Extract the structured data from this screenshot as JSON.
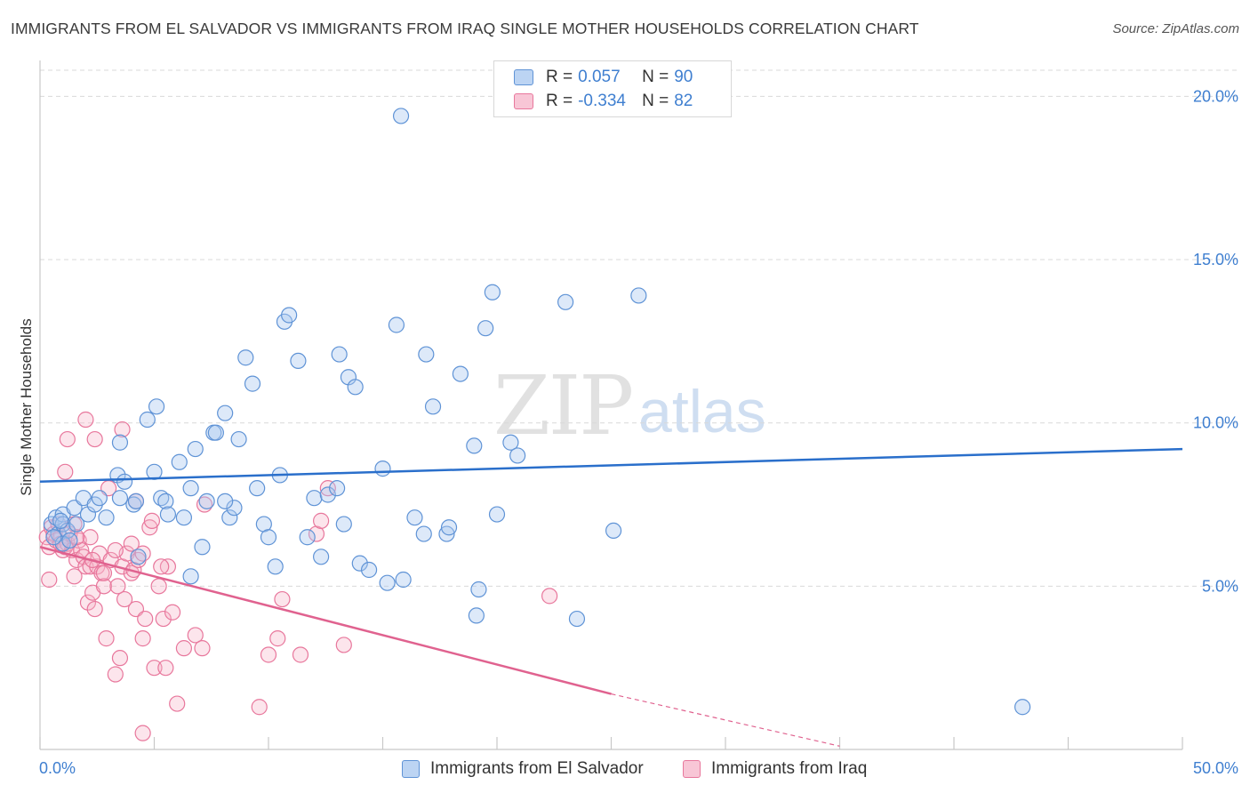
{
  "title": "IMMIGRANTS FROM EL SALVADOR VS IMMIGRANTS FROM IRAQ SINGLE MOTHER HOUSEHOLDS CORRELATION CHART",
  "source": "Source: ZipAtlas.com",
  "watermark": {
    "zip": "ZIP",
    "atlas": "atlas"
  },
  "legend_top": {
    "rows": [
      {
        "r_label": "R =",
        "r_value": "0.057",
        "n_label": "N =",
        "n_value": "90"
      },
      {
        "r_label": "R =",
        "r_value": "-0.334",
        "n_label": "N =",
        "n_value": "82"
      }
    ]
  },
  "colors": {
    "blue_fill": "#a9c8ef",
    "blue_stroke": "#5f93d6",
    "blue_line": "#2a6fcb",
    "pink_fill": "#f5b5c9",
    "pink_stroke": "#e8779c",
    "pink_line": "#e0628f",
    "grid": "#d9d9d9",
    "tick_text": "#3f7fd0"
  },
  "chart_data": {
    "type": "scatter",
    "title": "IMMIGRANTS FROM EL SALVADOR VS IMMIGRANTS FROM IRAQ SINGLE MOTHER HOUSEHOLDS CORRELATION CHART",
    "xlabel": "",
    "ylabel": "Single Mother Households",
    "xlim": [
      0,
      50
    ],
    "ylim": [
      0,
      20.8
    ],
    "x_tick_labels": [
      "0.0%",
      "50.0%"
    ],
    "y_ticks": [
      5,
      10,
      15,
      20
    ],
    "y_tick_labels": [
      "5.0%",
      "10.0%",
      "15.0%",
      "20.0%"
    ],
    "legend": [
      "Immigrants from El Salvador",
      "Immigrants from Iraq"
    ],
    "series": [
      {
        "name": "Immigrants from El Salvador",
        "r": 0.057,
        "n": 90,
        "trend": {
          "x0": 0,
          "y0": 8.2,
          "x1": 50,
          "y1": 9.2
        },
        "points": [
          [
            0.5,
            6.9
          ],
          [
            0.7,
            7.1
          ],
          [
            0.8,
            6.6
          ],
          [
            1.0,
            7.2
          ],
          [
            1.0,
            6.9
          ],
          [
            1.2,
            6.7
          ],
          [
            1.0,
            6.3
          ],
          [
            0.6,
            6.5
          ],
          [
            1.5,
            7.4
          ],
          [
            1.6,
            6.9
          ],
          [
            1.9,
            7.7
          ],
          [
            2.1,
            7.2
          ],
          [
            2.4,
            7.5
          ],
          [
            2.9,
            7.1
          ],
          [
            2.6,
            7.7
          ],
          [
            3.5,
            7.7
          ],
          [
            3.5,
            9.4
          ],
          [
            3.4,
            8.4
          ],
          [
            3.7,
            8.2
          ],
          [
            4.1,
            7.5
          ],
          [
            4.2,
            7.6
          ],
          [
            4.3,
            5.9
          ],
          [
            4.7,
            10.1
          ],
          [
            5.0,
            8.5
          ],
          [
            5.1,
            10.5
          ],
          [
            5.3,
            7.7
          ],
          [
            5.5,
            7.6
          ],
          [
            5.6,
            7.2
          ],
          [
            6.1,
            8.8
          ],
          [
            6.3,
            7.1
          ],
          [
            6.6,
            5.3
          ],
          [
            6.6,
            8.0
          ],
          [
            6.8,
            9.2
          ],
          [
            7.1,
            6.2
          ],
          [
            7.3,
            7.6
          ],
          [
            7.6,
            9.7
          ],
          [
            7.7,
            9.7
          ],
          [
            8.1,
            10.3
          ],
          [
            8.3,
            7.1
          ],
          [
            8.5,
            7.4
          ],
          [
            8.7,
            9.5
          ],
          [
            8.1,
            7.6
          ],
          [
            9.0,
            12.0
          ],
          [
            9.3,
            11.2
          ],
          [
            9.5,
            8.0
          ],
          [
            9.8,
            6.9
          ],
          [
            10.0,
            6.5
          ],
          [
            10.3,
            5.6
          ],
          [
            10.5,
            8.4
          ],
          [
            10.7,
            13.1
          ],
          [
            10.9,
            13.3
          ],
          [
            11.3,
            11.9
          ],
          [
            11.7,
            6.5
          ],
          [
            12.0,
            7.7
          ],
          [
            12.3,
            5.9
          ],
          [
            12.6,
            7.8
          ],
          [
            13.0,
            8.0
          ],
          [
            13.1,
            12.1
          ],
          [
            13.3,
            6.9
          ],
          [
            13.5,
            11.4
          ],
          [
            13.8,
            11.1
          ],
          [
            14.0,
            5.7
          ],
          [
            14.4,
            5.5
          ],
          [
            15.0,
            8.6
          ],
          [
            15.2,
            5.1
          ],
          [
            15.6,
            13.0
          ],
          [
            15.9,
            5.2
          ],
          [
            15.8,
            19.4
          ],
          [
            16.4,
            7.1
          ],
          [
            16.8,
            6.6
          ],
          [
            16.9,
            12.1
          ],
          [
            17.2,
            10.5
          ],
          [
            17.8,
            6.6
          ],
          [
            17.9,
            6.8
          ],
          [
            18.4,
            11.5
          ],
          [
            19.0,
            9.3
          ],
          [
            19.1,
            4.1
          ],
          [
            19.2,
            4.9
          ],
          [
            19.5,
            12.9
          ],
          [
            19.8,
            14.0
          ],
          [
            20.0,
            7.2
          ],
          [
            20.6,
            9.4
          ],
          [
            20.9,
            9.0
          ],
          [
            23.0,
            13.7
          ],
          [
            23.5,
            4.0
          ],
          [
            25.1,
            6.7
          ],
          [
            26.2,
            13.9
          ],
          [
            43.0,
            1.3
          ],
          [
            0.9,
            7.0
          ],
          [
            1.3,
            6.4
          ]
        ]
      },
      {
        "name": "Immigrants from Iraq",
        "r": -0.334,
        "n": 82,
        "trend": {
          "x0": 0,
          "y0": 6.2,
          "x1": 25,
          "y1": 1.7,
          "dash_x1": 35,
          "dash_y1": 0.1
        },
        "points": [
          [
            0.3,
            6.5
          ],
          [
            0.4,
            6.2
          ],
          [
            0.5,
            6.8
          ],
          [
            0.6,
            6.6
          ],
          [
            0.7,
            6.4
          ],
          [
            0.8,
            6.9
          ],
          [
            0.9,
            6.5
          ],
          [
            1.0,
            6.1
          ],
          [
            1.1,
            6.2
          ],
          [
            1.2,
            6.3
          ],
          [
            1.3,
            6.6
          ],
          [
            1.4,
            6.1
          ],
          [
            1.5,
            6.9
          ],
          [
            1.6,
            5.8
          ],
          [
            1.7,
            6.4
          ],
          [
            0.4,
            5.2
          ],
          [
            1.8,
            6.1
          ],
          [
            1.9,
            5.9
          ],
          [
            2.0,
            5.6
          ],
          [
            2.1,
            4.5
          ],
          [
            2.2,
            5.6
          ],
          [
            2.3,
            4.8
          ],
          [
            2.4,
            4.3
          ],
          [
            2.5,
            5.6
          ],
          [
            2.6,
            6.0
          ],
          [
            2.7,
            5.4
          ],
          [
            2.8,
            5.0
          ],
          [
            2.9,
            3.4
          ],
          [
            3.1,
            5.8
          ],
          [
            3.3,
            2.3
          ],
          [
            3.5,
            2.8
          ],
          [
            3.6,
            5.6
          ],
          [
            3.8,
            6.0
          ],
          [
            4.0,
            5.4
          ],
          [
            4.1,
            5.5
          ],
          [
            4.2,
            4.3
          ],
          [
            4.3,
            5.8
          ],
          [
            4.5,
            3.4
          ],
          [
            4.6,
            4.0
          ],
          [
            4.8,
            6.8
          ],
          [
            4.9,
            7.0
          ],
          [
            5.0,
            2.5
          ],
          [
            5.2,
            5.0
          ],
          [
            5.4,
            4.0
          ],
          [
            5.5,
            2.5
          ],
          [
            5.6,
            5.6
          ],
          [
            5.8,
            4.2
          ],
          [
            6.0,
            1.4
          ],
          [
            6.3,
            3.1
          ],
          [
            6.8,
            3.5
          ],
          [
            7.1,
            3.1
          ],
          [
            7.2,
            7.5
          ],
          [
            1.2,
            9.5
          ],
          [
            2.0,
            10.1
          ],
          [
            2.4,
            9.5
          ],
          [
            3.6,
            9.8
          ],
          [
            1.1,
            8.5
          ],
          [
            3.0,
            8.0
          ],
          [
            4.2,
            7.6
          ],
          [
            4.5,
            6.0
          ],
          [
            2.2,
            6.5
          ],
          [
            3.3,
            6.1
          ],
          [
            4.0,
            6.3
          ],
          [
            5.3,
            5.6
          ],
          [
            1.5,
            5.3
          ],
          [
            2.3,
            5.8
          ],
          [
            3.7,
            4.6
          ],
          [
            9.6,
            1.3
          ],
          [
            10.0,
            2.9
          ],
          [
            10.4,
            3.4
          ],
          [
            10.6,
            4.6
          ],
          [
            11.4,
            2.9
          ],
          [
            12.1,
            6.6
          ],
          [
            12.3,
            7.0
          ],
          [
            12.6,
            8.0
          ],
          [
            13.3,
            3.2
          ],
          [
            22.3,
            4.7
          ],
          [
            4.5,
            0.5
          ],
          [
            0.9,
            6.3
          ],
          [
            1.6,
            6.5
          ],
          [
            2.8,
            5.4
          ],
          [
            3.4,
            5.0
          ]
        ]
      }
    ]
  }
}
